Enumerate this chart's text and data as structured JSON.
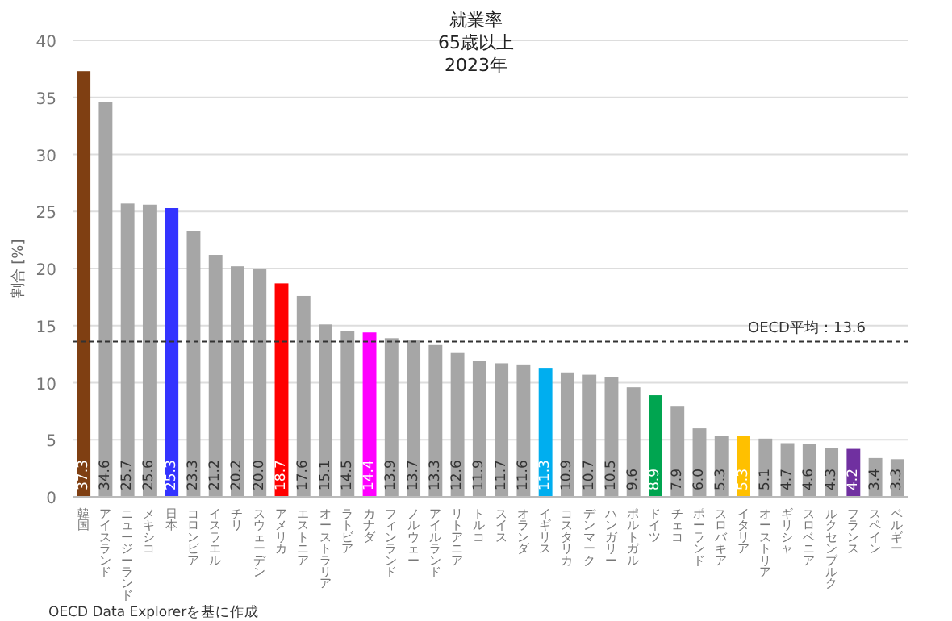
{
  "chart_data": {
    "type": "bar",
    "title": "就業率\n65歳以上\n2023年",
    "ylabel": "割合 [%]",
    "categories": [
      "韓国",
      "アイスランド",
      "ニュージーランド",
      "メキシコ",
      "日本",
      "コロンビア",
      "イスラエル",
      "チリ",
      "スウェーデン",
      "アメリカ",
      "エストニア",
      "オーストラリア",
      "ラトビア",
      "カナダ",
      "フィンランド",
      "ノルウェー",
      "アイルランド",
      "リトアニア",
      "トルコ",
      "スイス",
      "オランダ",
      "イギリス",
      "コスタリカ",
      "デンマーク",
      "ハンガリー",
      "ポルトガル",
      "ドイツ",
      "チェコ",
      "ポーランド",
      "スロバキア",
      "イタリア",
      "オーストリア",
      "ギリシャ",
      "スロベニア",
      "ルクセンブルク",
      "フランス",
      "スペイン",
      "ベルギー"
    ],
    "values": [
      37.3,
      34.6,
      25.7,
      25.6,
      25.3,
      23.3,
      21.2,
      20.2,
      20.0,
      18.7,
      17.6,
      15.1,
      14.5,
      14.4,
      13.9,
      13.7,
      13.3,
      12.6,
      11.9,
      11.7,
      11.6,
      11.3,
      10.9,
      10.7,
      10.5,
      9.6,
      8.9,
      7.9,
      6.0,
      5.3,
      5.3,
      5.1,
      4.7,
      4.6,
      4.3,
      4.2,
      3.4,
      3.3
    ],
    "value_labels": [
      "37.3",
      "34.6",
      "25.7",
      "25.6",
      "25.3",
      "23.3",
      "21.2",
      "20.2",
      "20.0",
      "18.7",
      "17.6",
      "15.1",
      "14.5",
      "14.4",
      "13.9",
      "13.7",
      "13.3",
      "12.6",
      "11.9",
      "11.7",
      "11.6",
      "11.3",
      "10.9",
      "10.7",
      "10.5",
      "9.6",
      "8.9",
      "7.9",
      "6.0",
      "5.3",
      "5.3",
      "5.1",
      "4.7",
      "4.6",
      "4.3",
      "4.2",
      "3.4",
      "3.3"
    ],
    "colors": [
      "#7f3f12",
      "#a6a6a6",
      "#a6a6a6",
      "#a6a6a6",
      "#3333ff",
      "#a6a6a6",
      "#a6a6a6",
      "#a6a6a6",
      "#a6a6a6",
      "#ff0000",
      "#a6a6a6",
      "#a6a6a6",
      "#a6a6a6",
      "#ff00ff",
      "#a6a6a6",
      "#a6a6a6",
      "#a6a6a6",
      "#a6a6a6",
      "#a6a6a6",
      "#a6a6a6",
      "#a6a6a6",
      "#00aeef",
      "#a6a6a6",
      "#a6a6a6",
      "#a6a6a6",
      "#a6a6a6",
      "#00a550",
      "#a6a6a6",
      "#a6a6a6",
      "#a6a6a6",
      "#ffc000",
      "#a6a6a6",
      "#a6a6a6",
      "#a6a6a6",
      "#a6a6a6",
      "#7030a0",
      "#a6a6a6",
      "#a6a6a6"
    ],
    "ylim": [
      0,
      40
    ],
    "yticks": [
      0,
      5,
      10,
      15,
      20,
      25,
      30,
      35,
      40
    ],
    "grid": "y",
    "ref_lines": [
      {
        "axis": "y",
        "value": 13.6,
        "label": "OECD平均：13.6",
        "line_style": "dashed",
        "color": "#333333"
      }
    ],
    "annotations": [
      "OECD Data Explorerを基に作成"
    ]
  }
}
